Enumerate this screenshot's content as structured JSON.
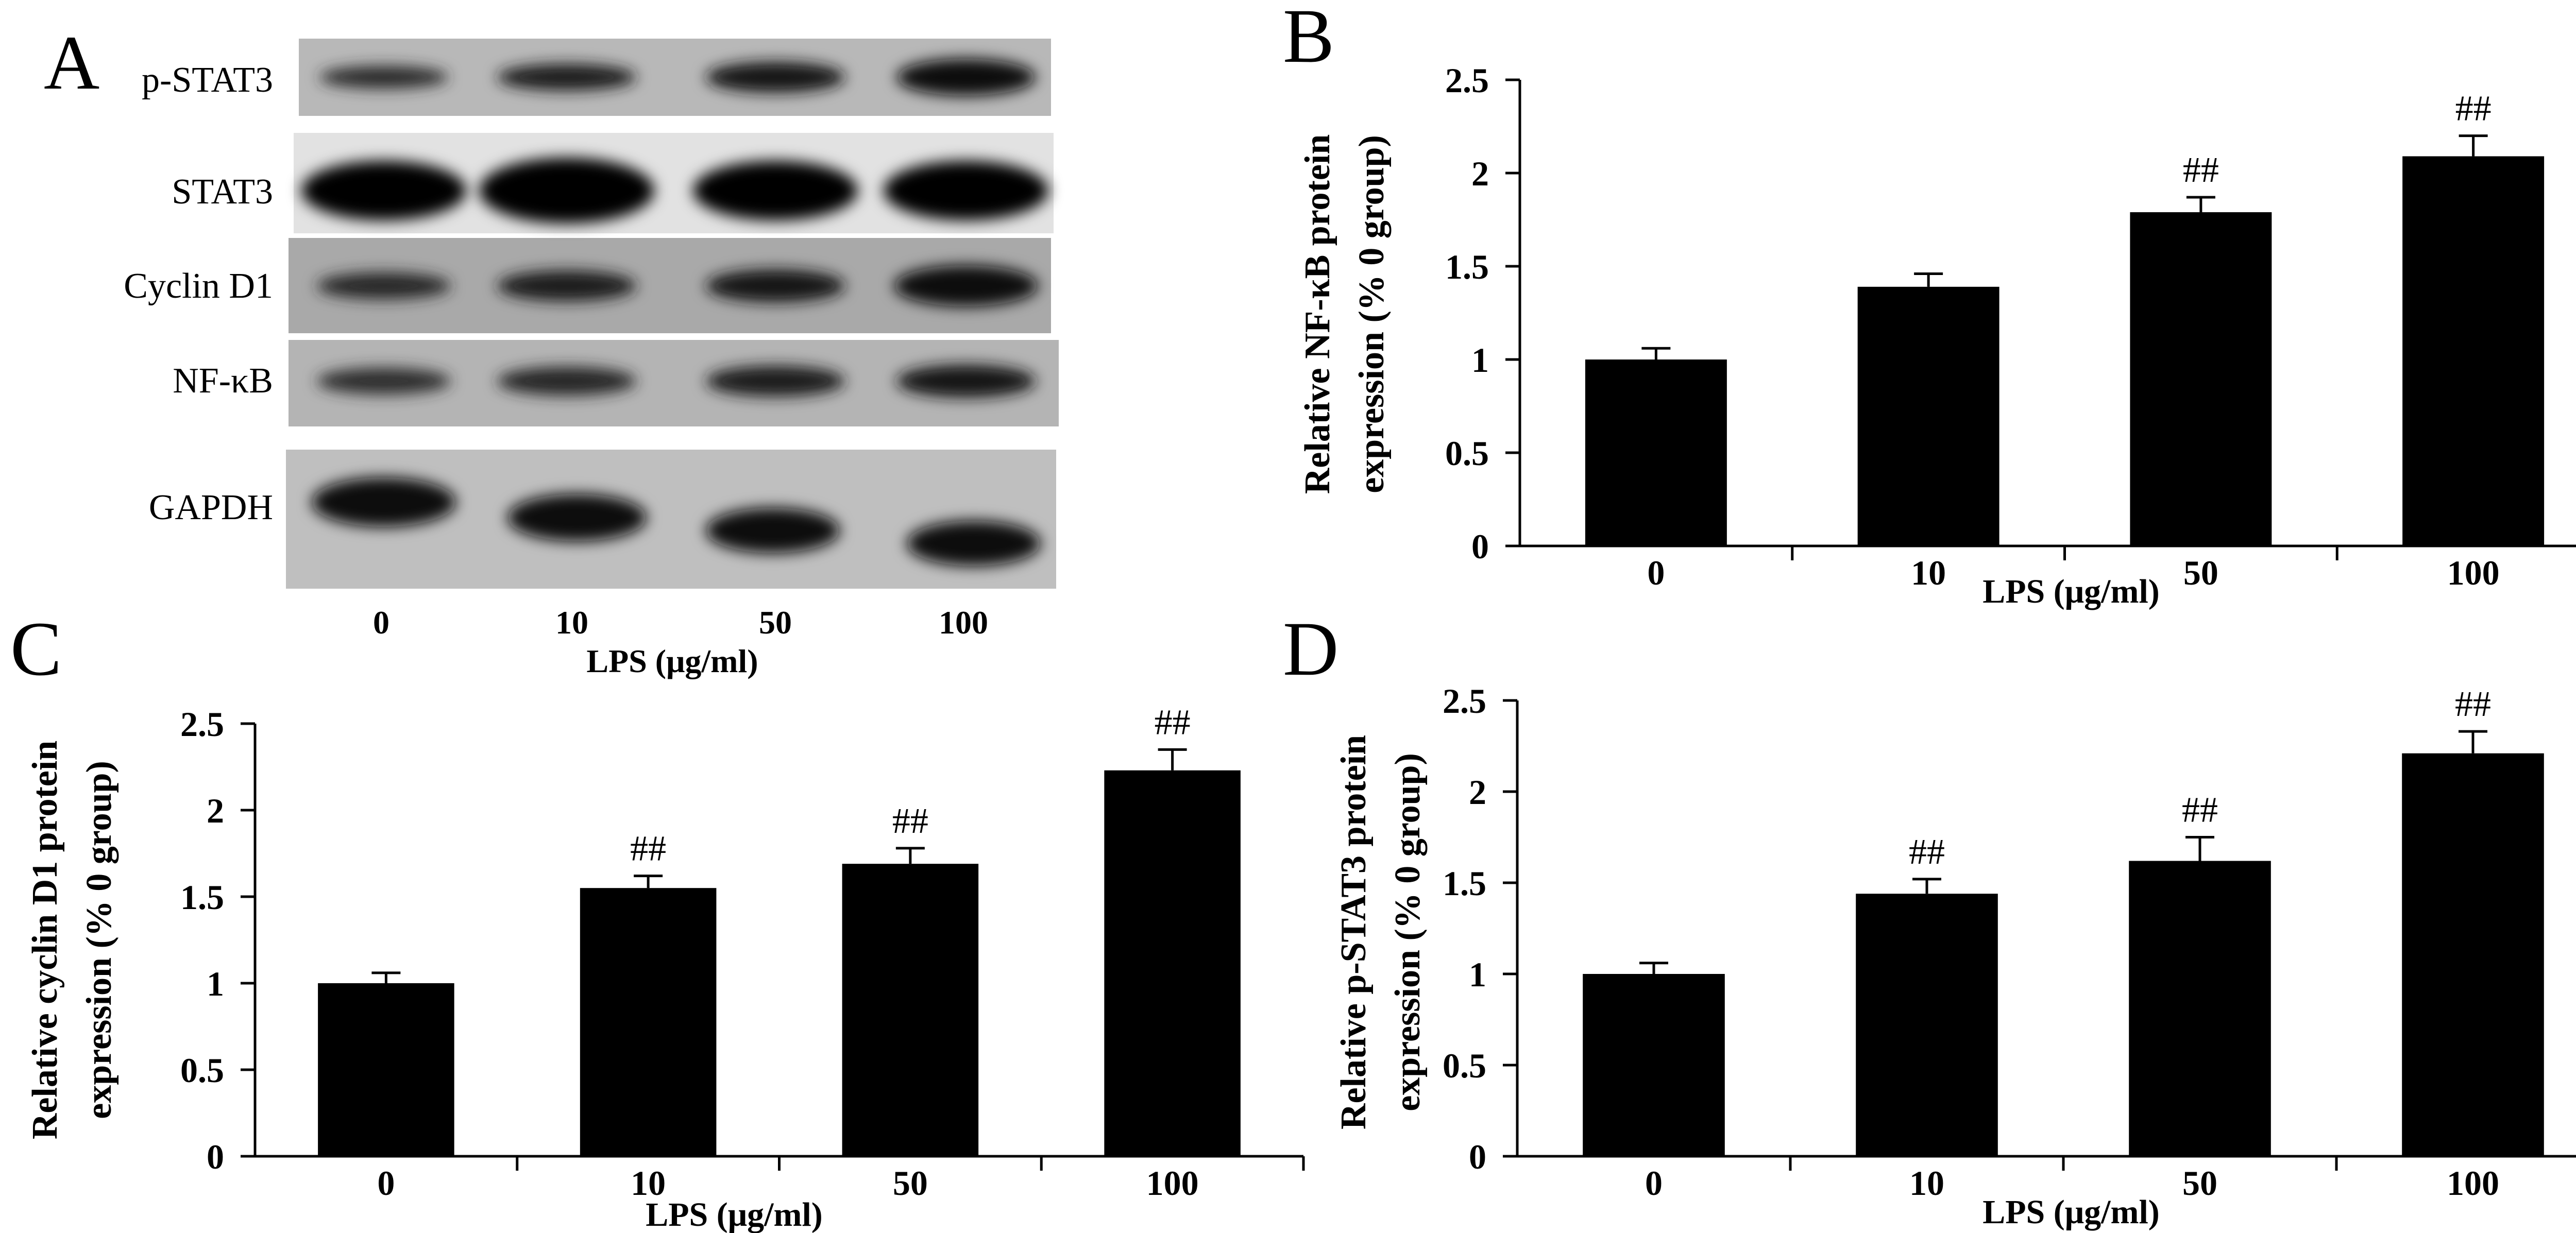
{
  "panel_a": {
    "letter": "A",
    "rows": [
      "p-STAT3",
      "STAT3",
      "Cyclin D1",
      "NF-κB",
      "GAPDH"
    ],
    "lanes": [
      "0",
      "10",
      "50",
      "100"
    ],
    "xlabel": "LPS (μg/ml)"
  },
  "chart_data": [
    {
      "panel": "B",
      "type": "bar",
      "categories": [
        "0",
        "10",
        "50",
        "100"
      ],
      "values": [
        1.0,
        1.39,
        1.79,
        2.09
      ],
      "errors": [
        0.06,
        0.07,
        0.08,
        0.11
      ],
      "annotations": [
        "",
        "",
        "##",
        "##"
      ],
      "xlabel": "LPS (μg/ml)",
      "ylabel_line1": "Relative NF-κB protein",
      "ylabel_line2": "expression (% 0 group)",
      "ylim": [
        0,
        2.5
      ],
      "yticks": [
        "0",
        "0.5",
        "1",
        "1.5",
        "2",
        "2.5"
      ],
      "grid": false,
      "bar_color": "#000000"
    },
    {
      "panel": "C",
      "type": "bar",
      "categories": [
        "0",
        "10",
        "50",
        "100"
      ],
      "values": [
        1.0,
        1.55,
        1.69,
        2.23
      ],
      "errors": [
        0.06,
        0.07,
        0.09,
        0.12
      ],
      "annotations": [
        "",
        "##",
        "##",
        "##"
      ],
      "xlabel": "LPS (μg/ml)",
      "ylabel_line1": "Relative cyclin D1 protein",
      "ylabel_line2": "expression (% 0 group)",
      "ylim": [
        0,
        2.5
      ],
      "yticks": [
        "0",
        "0.5",
        "1",
        "1.5",
        "2",
        "2.5"
      ],
      "grid": false,
      "bar_color": "#000000"
    },
    {
      "panel": "D",
      "type": "bar",
      "categories": [
        "0",
        "10",
        "50",
        "100"
      ],
      "values": [
        1.0,
        1.44,
        1.62,
        2.21
      ],
      "errors": [
        0.06,
        0.08,
        0.13,
        0.12
      ],
      "annotations": [
        "",
        "##",
        "##",
        "##"
      ],
      "xlabel": "LPS (μg/ml)",
      "ylabel_line1": "Relative p-STAT3 protein",
      "ylabel_line2": "expression (% 0 group)",
      "ylim": [
        0,
        2.5
      ],
      "yticks": [
        "0",
        "0.5",
        "1",
        "1.5",
        "2",
        "2.5"
      ],
      "grid": false,
      "bar_color": "#000000"
    }
  ]
}
